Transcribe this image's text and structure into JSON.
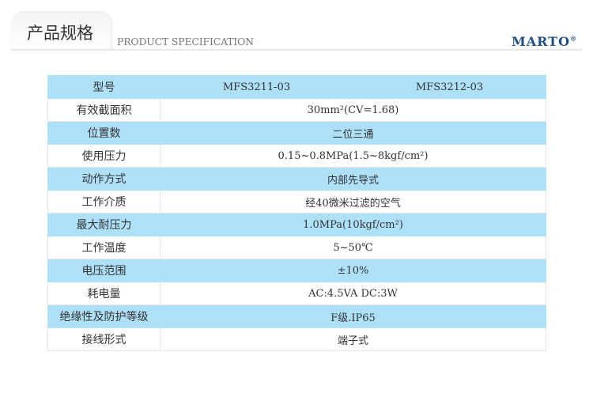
{
  "header": {
    "title": "产品规格",
    "subtitle": "PRODUCT SPECIFICATION",
    "brand": "MARTO",
    "brand_mark": "®"
  },
  "colors": {
    "row_highlight": "#aee0f8",
    "brand": "#1d4e86"
  },
  "table": {
    "model_label": "型号",
    "models": [
      "MFS3211-03",
      "MFS3212-03"
    ],
    "rows": [
      {
        "label": "有效截面积",
        "value": "30mm²(CV=1.68)"
      },
      {
        "label": "位置数",
        "value": "二位三通"
      },
      {
        "label": "使用压力",
        "value": "0.15~0.8MPa(1.5~8kgf/cm²)"
      },
      {
        "label": "动作方式",
        "value": "内部先导式"
      },
      {
        "label": "工作介质",
        "value": "经40微米过滤的空气"
      },
      {
        "label": "最大耐压力",
        "value": "1.0MPa(10kgf/cm²)"
      },
      {
        "label": "工作温度",
        "value": "5~50℃"
      },
      {
        "label": "电压范围",
        "value": "±10%"
      },
      {
        "label": "耗电量",
        "value": "AC:4.5VA  DC:3W"
      },
      {
        "label": "绝缘性及防护等级",
        "value": "F级.IP65"
      },
      {
        "label": "接线形式",
        "value": "端子式"
      }
    ]
  }
}
